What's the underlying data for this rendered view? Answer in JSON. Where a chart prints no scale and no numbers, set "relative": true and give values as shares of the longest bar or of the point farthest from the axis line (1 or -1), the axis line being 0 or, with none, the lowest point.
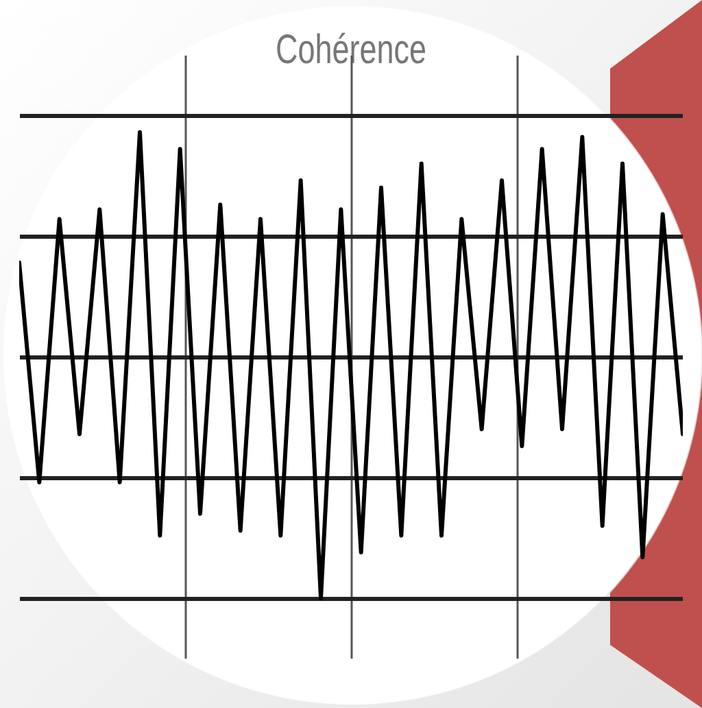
{
  "chart_data": {
    "type": "line",
    "title": "Cohérence",
    "relative": true,
    "grid": true,
    "marker": "none",
    "line_style": "solid",
    "categories": [
      null,
      null,
      null,
      null,
      null,
      null,
      null,
      null,
      null,
      null,
      null,
      null,
      null,
      null,
      null,
      null,
      null,
      null,
      null,
      null,
      null,
      null,
      null,
      null,
      null,
      null,
      null,
      null,
      null,
      null,
      null,
      null,
      null,
      null
    ],
    "series": [
      {
        "color": "#000000",
        "values": [
          0.39,
          -0.52,
          0.57,
          -0.32,
          0.61,
          -0.52,
          0.93,
          -0.74,
          0.86,
          -0.65,
          0.63,
          -0.72,
          0.57,
          -0.74,
          0.73,
          -1,
          0.61,
          -0.81,
          0.7,
          -0.74,
          0.8,
          -0.74,
          0.57,
          -0.3,
          0.73,
          -0.37,
          0.86,
          -0.3,
          0.91,
          -0.7,
          0.8,
          -0.83,
          0.59,
          -0.32
        ]
      }
    ]
  }
}
